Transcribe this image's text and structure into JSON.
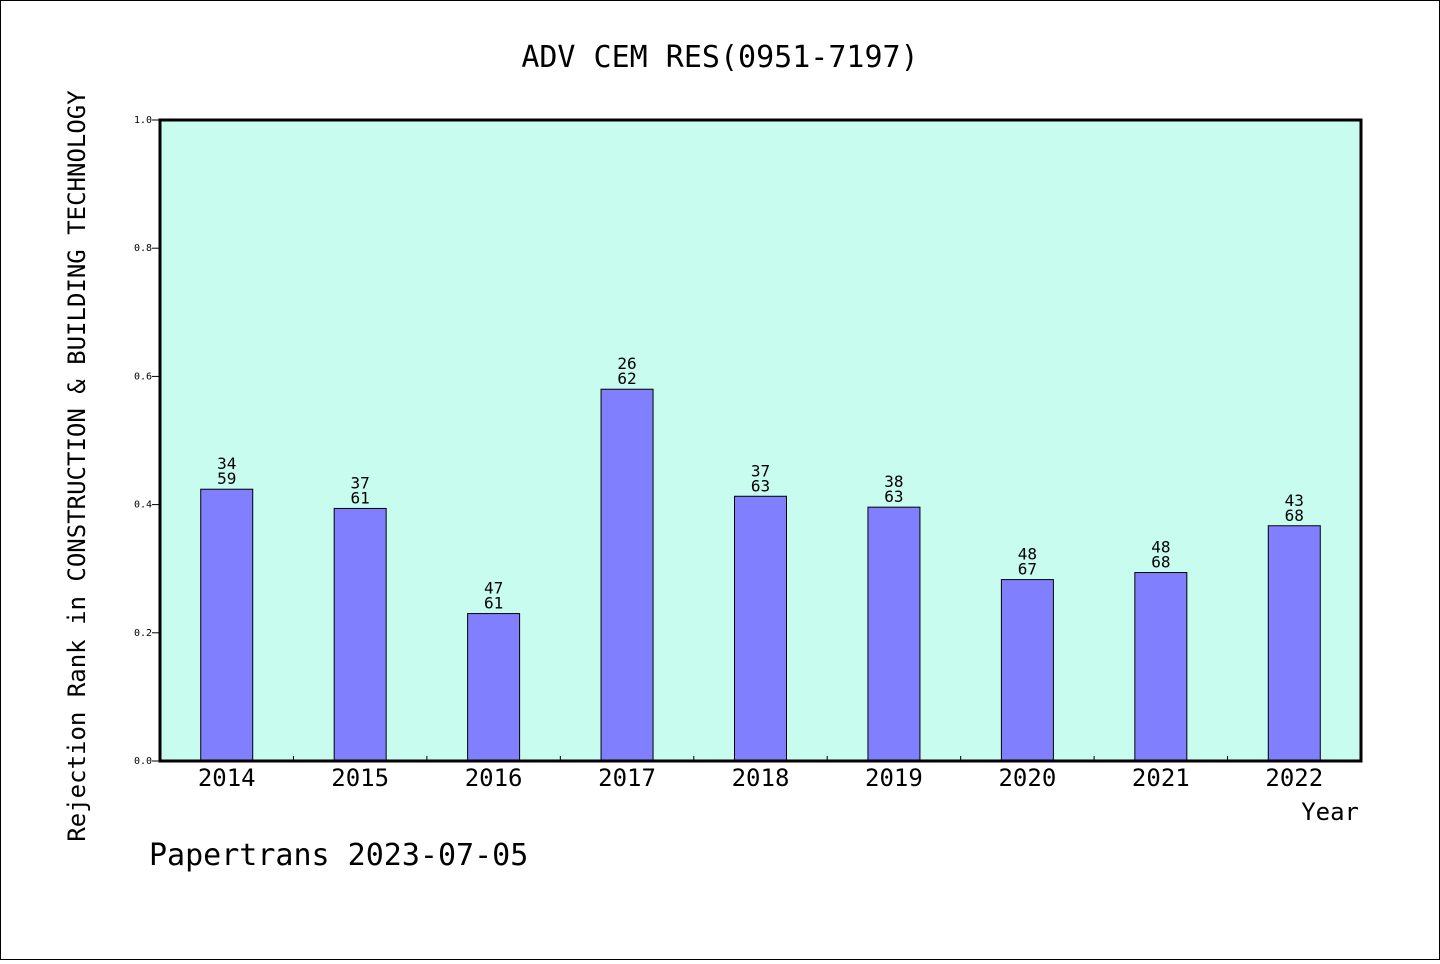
{
  "chart_data": {
    "type": "bar",
    "title": "ADV CEM RES(0951-7197)",
    "xlabel": "Year",
    "ylabel": "Rejection Rank in CONSTRUCTION & BUILDING TECHNOLOGY",
    "ylim": [
      0,
      1.0
    ],
    "yticks": [
      "0.0",
      "0.2",
      "0.4",
      "0.6",
      "0.8",
      "1.0"
    ],
    "categories": [
      "2014",
      "2015",
      "2016",
      "2017",
      "2018",
      "2019",
      "2020",
      "2021",
      "2022"
    ],
    "values": [
      0.424,
      0.394,
      0.23,
      0.58,
      0.413,
      0.396,
      0.283,
      0.294,
      0.367
    ],
    "labels": [
      [
        "34",
        "59"
      ],
      [
        "37",
        "61"
      ],
      [
        "47",
        "61"
      ],
      [
        "26",
        "62"
      ],
      [
        "37",
        "63"
      ],
      [
        "38",
        "63"
      ],
      [
        "48",
        "67"
      ],
      [
        "48",
        "68"
      ],
      [
        "43",
        "68"
      ]
    ],
    "grid": false,
    "plot_background": "#c8fcee",
    "bar_color": "#8080ff"
  },
  "footer": "Papertrans 2023-07-05"
}
